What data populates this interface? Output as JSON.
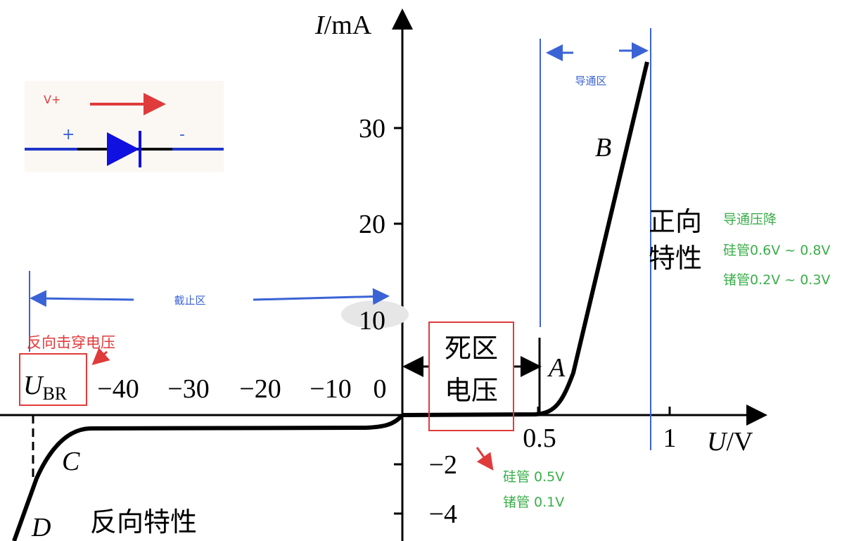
{
  "y_axis": {
    "symbol": "I",
    "unit": "/mA",
    "ticks": [
      "30",
      "20",
      "10",
      "−2",
      "−4"
    ]
  },
  "x_axis": {
    "symbol": "U",
    "unit": "/V",
    "ticks": [
      "−40",
      "−30",
      "−20",
      "−10",
      "0",
      "0.5",
      "1"
    ]
  },
  "points": [
    "A",
    "B",
    "C",
    "D"
  ],
  "inset": {
    "voltage": "V+",
    "plus": "+",
    "minus": "-"
  },
  "regions": {
    "conduction": "导通区",
    "cutoff": "截止区",
    "dead_zone": [
      "死区",
      "电压"
    ],
    "forward": [
      "正向",
      "特性"
    ],
    "reverse": "反向特性"
  },
  "breakdown": {
    "symbol": "U",
    "subscript": "BR",
    "label": "反向击穿电压"
  },
  "forward_drop": {
    "title": "导通压降",
    "silicon": "硅管0.6V ~ 0.8V",
    "germanium": "锗管0.2V ~ 0.3V"
  },
  "dead_zone_voltage": {
    "silicon": "硅管 0.5V",
    "germanium": "锗管 0.1V"
  }
}
